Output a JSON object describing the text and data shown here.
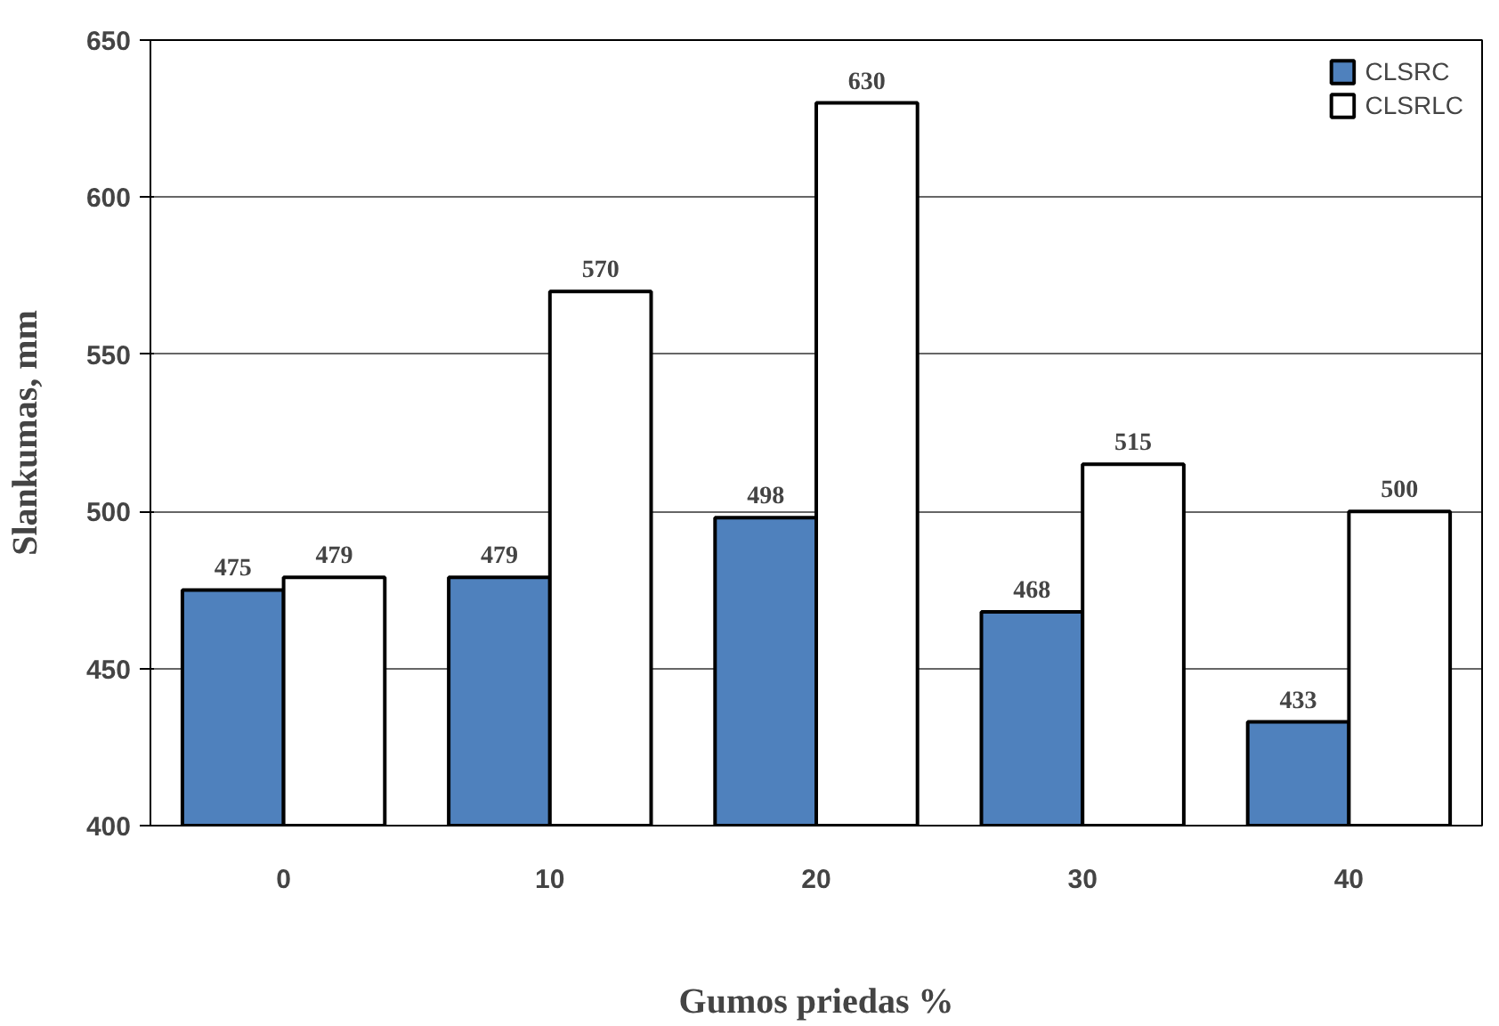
{
  "chart_data": {
    "type": "bar",
    "xlabel": "Gumos priedas %",
    "ylabel": "Slankumas, mm",
    "categories": [
      "0",
      "10",
      "20",
      "30",
      "40"
    ],
    "series": [
      {
        "name": "CLSRC",
        "color": "#4f81bd",
        "values": [
          475,
          479,
          498,
          468,
          433
        ]
      },
      {
        "name": "CLSRLC",
        "color": "#ffffff",
        "values": [
          479,
          570,
          630,
          515,
          500
        ]
      }
    ],
    "ylim": [
      400,
      650
    ],
    "yticks": [
      400,
      450,
      500,
      550,
      600,
      650
    ],
    "grid": "y",
    "legend": "top right",
    "data_labels": true
  }
}
